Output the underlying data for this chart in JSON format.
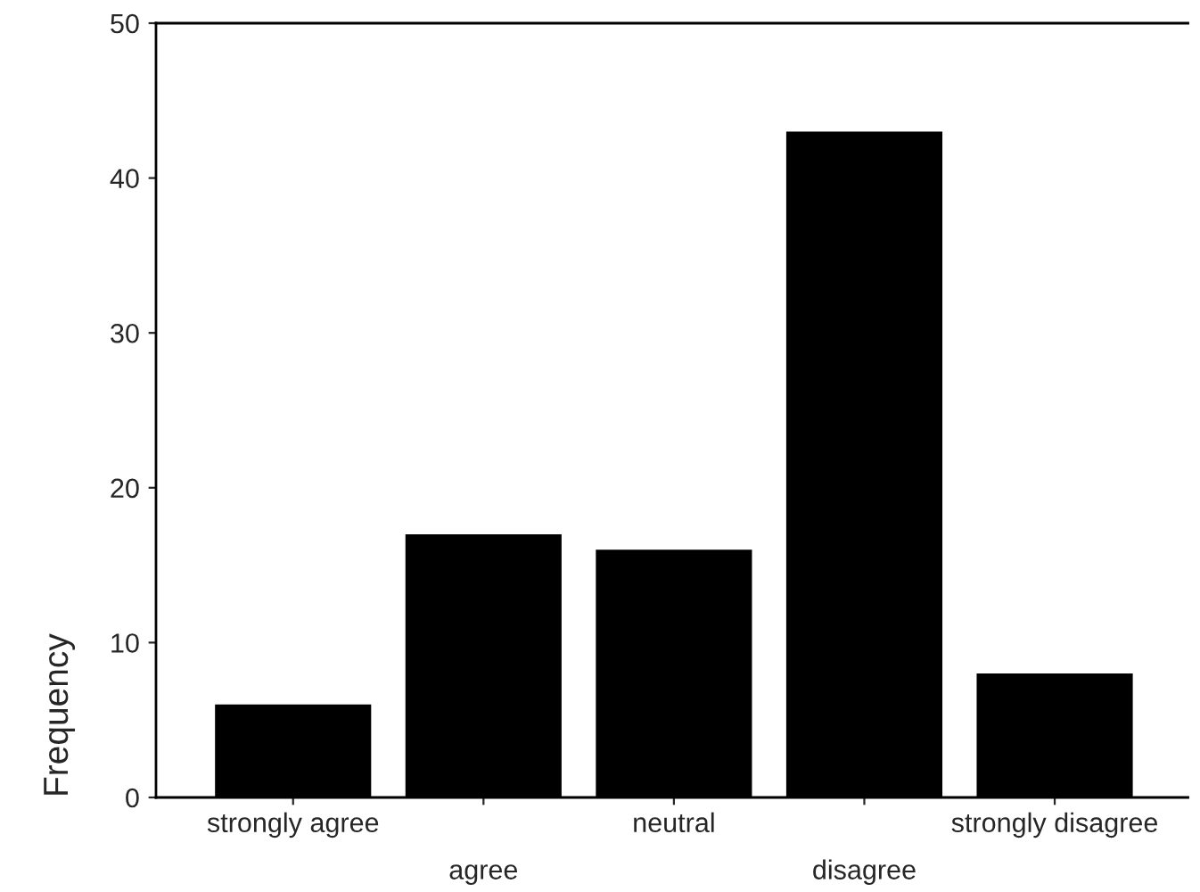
{
  "chart_data": {
    "type": "bar",
    "ylabel": "Frequency",
    "categories": [
      "strongly agree",
      "agree",
      "neutral",
      "disagree",
      "strongly disagree"
    ],
    "values": [
      6,
      17,
      16,
      43,
      8
    ],
    "color": "#000000",
    "ylim": [
      0,
      50
    ],
    "yticks": [
      0,
      10,
      20,
      30,
      40,
      50
    ],
    "grid": false,
    "legend": false
  }
}
